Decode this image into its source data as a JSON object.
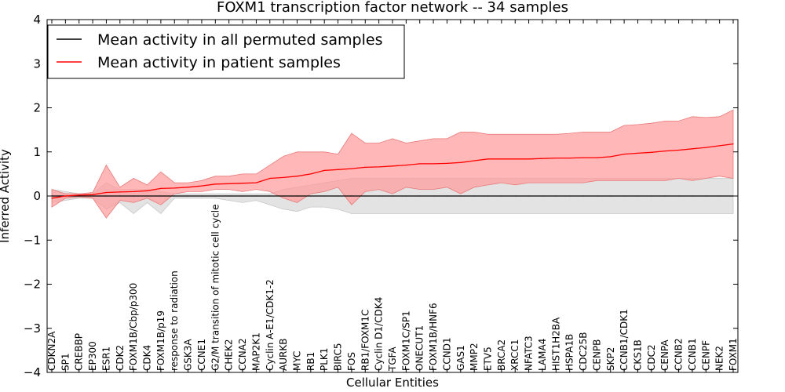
{
  "chart_data": {
    "type": "line",
    "title": "FOXM1 transcription factor network -- 34 samples",
    "xlabel": "Cellular Entities",
    "ylabel": "Inferred Activity",
    "ylim": [
      -4,
      4
    ],
    "yticks": [
      -4,
      -3,
      -2,
      -1,
      0,
      1,
      2,
      3,
      4
    ],
    "ytick_labels": [
      "−4",
      "−3",
      "−2",
      "−1",
      "0",
      "1",
      "2",
      "3",
      "4"
    ],
    "legend_position": "top-left",
    "categories": [
      "CDKN2A",
      "SP1",
      "CREBBP",
      "EP300",
      "ESR1",
      "CDK2",
      "FOXM1B/Cbp/p300",
      "CDK4",
      "FOXM1B/p19",
      "response to radiation",
      "GSK3A",
      "CCNE1",
      "G2/M transition of mitotic cell cycle",
      "CHEK2",
      "CCNA2",
      "MAP2K1",
      "Cyclin A-E1/CDK1-2",
      "AURKB",
      "MYC",
      "RB1",
      "PLK1",
      "BIRC5",
      "FOS",
      "RB1/FOXM1C",
      "Cyclin D1/CDK4",
      "TGFA",
      "FOXM1C/SP1",
      "ONECUT1",
      "FOXM1B/HNF6",
      "CCND1",
      "GAS1",
      "MMP2",
      "ETV5",
      "BRCA2",
      "XRCC1",
      "NFATC3",
      "LAMA4",
      "HIST1H2BA",
      "HSPA1B",
      "CDC25B",
      "CENPB",
      "SKP2",
      "CCNB1/CDK1",
      "CKS1B",
      "CDC2",
      "CENPA",
      "CCNB2",
      "CCNB1",
      "CENPF",
      "NEK2",
      "FOXM1"
    ],
    "series": [
      {
        "name": "Mean activity in all permuted samples",
        "color": "#000000",
        "fill_color": "#d9d9d9",
        "values": [
          0,
          0,
          0,
          0,
          0,
          0,
          0,
          0,
          0,
          0,
          0,
          0,
          0,
          0,
          0,
          0,
          0,
          0,
          0,
          0,
          0,
          0,
          0,
          0,
          0,
          0,
          0,
          0,
          0,
          0,
          0,
          0,
          0,
          0,
          0,
          0,
          0,
          0,
          0,
          0,
          0,
          0,
          0,
          0,
          0,
          0,
          0,
          0,
          0,
          0,
          0
        ],
        "upper": [
          0.15,
          0.1,
          0.05,
          0.05,
          0.3,
          0.15,
          0.15,
          0.15,
          0.1,
          0.05,
          0.05,
          0.05,
          0.05,
          0.05,
          0.05,
          0.05,
          0.05,
          0.15,
          0.2,
          0.25,
          0.3,
          0.35,
          0.4,
          0.4,
          0.4,
          0.4,
          0.4,
          0.4,
          0.4,
          0.4,
          0.4,
          0.4,
          0.4,
          0.4,
          0.4,
          0.4,
          0.4,
          0.4,
          0.4,
          0.4,
          0.4,
          0.4,
          0.4,
          0.4,
          0.4,
          0.4,
          0.4,
          0.4,
          0.4,
          0.4,
          0.4
        ],
        "lower": [
          -0.15,
          -0.1,
          -0.05,
          -0.05,
          -0.3,
          -0.15,
          -0.4,
          -0.15,
          -0.4,
          -0.05,
          -0.05,
          -0.05,
          -0.05,
          -0.1,
          -0.15,
          -0.1,
          -0.2,
          -0.3,
          -0.35,
          -0.25,
          -0.25,
          -0.3,
          -0.4,
          -0.4,
          -0.4,
          -0.4,
          -0.4,
          -0.4,
          -0.4,
          -0.4,
          -0.4,
          -0.4,
          -0.4,
          -0.4,
          -0.4,
          -0.4,
          -0.4,
          -0.4,
          -0.4,
          -0.4,
          -0.4,
          -0.4,
          -0.4,
          -0.4,
          -0.4,
          -0.4,
          -0.4,
          -0.4,
          -0.4,
          -0.4,
          -0.4
        ]
      },
      {
        "name": "Mean activity in patient samples",
        "color": "#ff0000",
        "fill_color": "#ff9999",
        "values": [
          -0.05,
          0,
          0.02,
          0.03,
          0.08,
          0.09,
          0.1,
          0.12,
          0.17,
          0.18,
          0.2,
          0.23,
          0.27,
          0.28,
          0.29,
          0.3,
          0.4,
          0.42,
          0.45,
          0.5,
          0.58,
          0.6,
          0.62,
          0.65,
          0.66,
          0.68,
          0.7,
          0.73,
          0.73,
          0.74,
          0.76,
          0.8,
          0.84,
          0.84,
          0.84,
          0.84,
          0.85,
          0.86,
          0.86,
          0.87,
          0.87,
          0.89,
          0.95,
          0.97,
          0.99,
          1.02,
          1.04,
          1.07,
          1.1,
          1.14,
          1.18
        ],
        "upper": [
          0.15,
          0.05,
          0.05,
          0.08,
          0.7,
          0.2,
          0.4,
          0.25,
          0.55,
          0.3,
          0.3,
          0.35,
          0.45,
          0.45,
          0.5,
          0.5,
          0.7,
          0.9,
          1.0,
          1.0,
          1.0,
          0.95,
          1.42,
          1.2,
          1.2,
          1.3,
          1.2,
          1.25,
          1.3,
          1.3,
          1.45,
          1.45,
          1.4,
          1.4,
          1.4,
          1.4,
          1.4,
          1.4,
          1.42,
          1.45,
          1.45,
          1.45,
          1.6,
          1.62,
          1.65,
          1.7,
          1.7,
          1.8,
          1.78,
          1.8,
          1.95
        ],
        "lower": [
          -0.25,
          -0.05,
          -0.02,
          -0.05,
          -0.5,
          -0.1,
          -0.15,
          -0.05,
          -0.2,
          0.05,
          0.1,
          0.1,
          0.15,
          0.15,
          0.1,
          0.15,
          0.1,
          -0.05,
          -0.15,
          0.05,
          0.1,
          0.2,
          -0.2,
          0.1,
          0.15,
          0.05,
          0.2,
          0.15,
          0.15,
          0.2,
          0.05,
          0.2,
          0.25,
          0.3,
          0.25,
          0.3,
          0.3,
          0.3,
          0.3,
          0.3,
          0.35,
          0.35,
          0.35,
          0.35,
          0.35,
          0.35,
          0.4,
          0.35,
          0.4,
          0.45,
          0.4
        ]
      }
    ]
  }
}
